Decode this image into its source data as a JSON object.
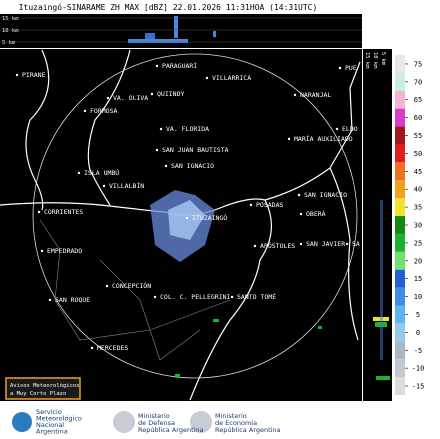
{
  "header": {
    "title": "Ituzaingó-SINARAME ZH MAX [dBZ] 22.01.2026 11:31HOA (14:31UTC)"
  },
  "top_profile": {
    "heights": [
      "15 km",
      "10 km",
      "5 km"
    ]
  },
  "side_profile": {
    "heights": [
      "15 km",
      "10 km",
      "5 km"
    ]
  },
  "map": {
    "cities": [
      "PIRANE",
      "PARAGUARÍ",
      "VILLARRICA",
      "NARANJAL",
      "PUE",
      "VA. OLIVA",
      "QUIINDY",
      "FORMOSA",
      "VA. FLORIDA",
      "ELDO",
      "MARÍA AUXILIADO",
      "SAN JUAN BAUTISTA",
      "SAN IGNACIO",
      "ISLA UMBÚ",
      "VILLALBÍN",
      "SAN IGNACIO",
      "POSADAS",
      "CORRIENTES",
      "ITUZAINGÓ",
      "OBERÁ",
      "EMPEDRADO",
      "APÓSTOLES",
      "SAN JAVIER",
      "SA",
      "CONCEPCIÓN",
      "SAN ROQUE",
      "COL. C. PELLEGRINI",
      "SANTO TOMÉ",
      "MERCEDES"
    ]
  },
  "colorbar": {
    "ticks": [
      75,
      70,
      65,
      60,
      55,
      50,
      45,
      40,
      35,
      30,
      25,
      20,
      15,
      10,
      5,
      0,
      -5,
      -10,
      -15
    ],
    "colors": [
      "#e8e8e8",
      "#c8f0e0",
      "#f0b4d8",
      "#d83cc8",
      "#a01818",
      "#e02020",
      "#f07020",
      "#f0a020",
      "#f0e030",
      "#108a10",
      "#20b030",
      "#70e070",
      "#2060d0",
      "#3c8ce8",
      "#60b4f0",
      "#90cce8",
      "#a8b8c8",
      "#c0c8d0",
      "#dcdcdc"
    ]
  },
  "notice": {
    "lines": [
      "Avisos Meteorológicos",
      "a Muy Corto Plazo"
    ]
  },
  "logos": {
    "smn": [
      "Servicio",
      "Meteorológico",
      "Nacional",
      "Argentina"
    ],
    "defensa": [
      "Ministerio",
      "de Defensa",
      "República Argentina"
    ],
    "economia": [
      "Ministerio",
      "de Economía",
      "República Argentina"
    ]
  }
}
